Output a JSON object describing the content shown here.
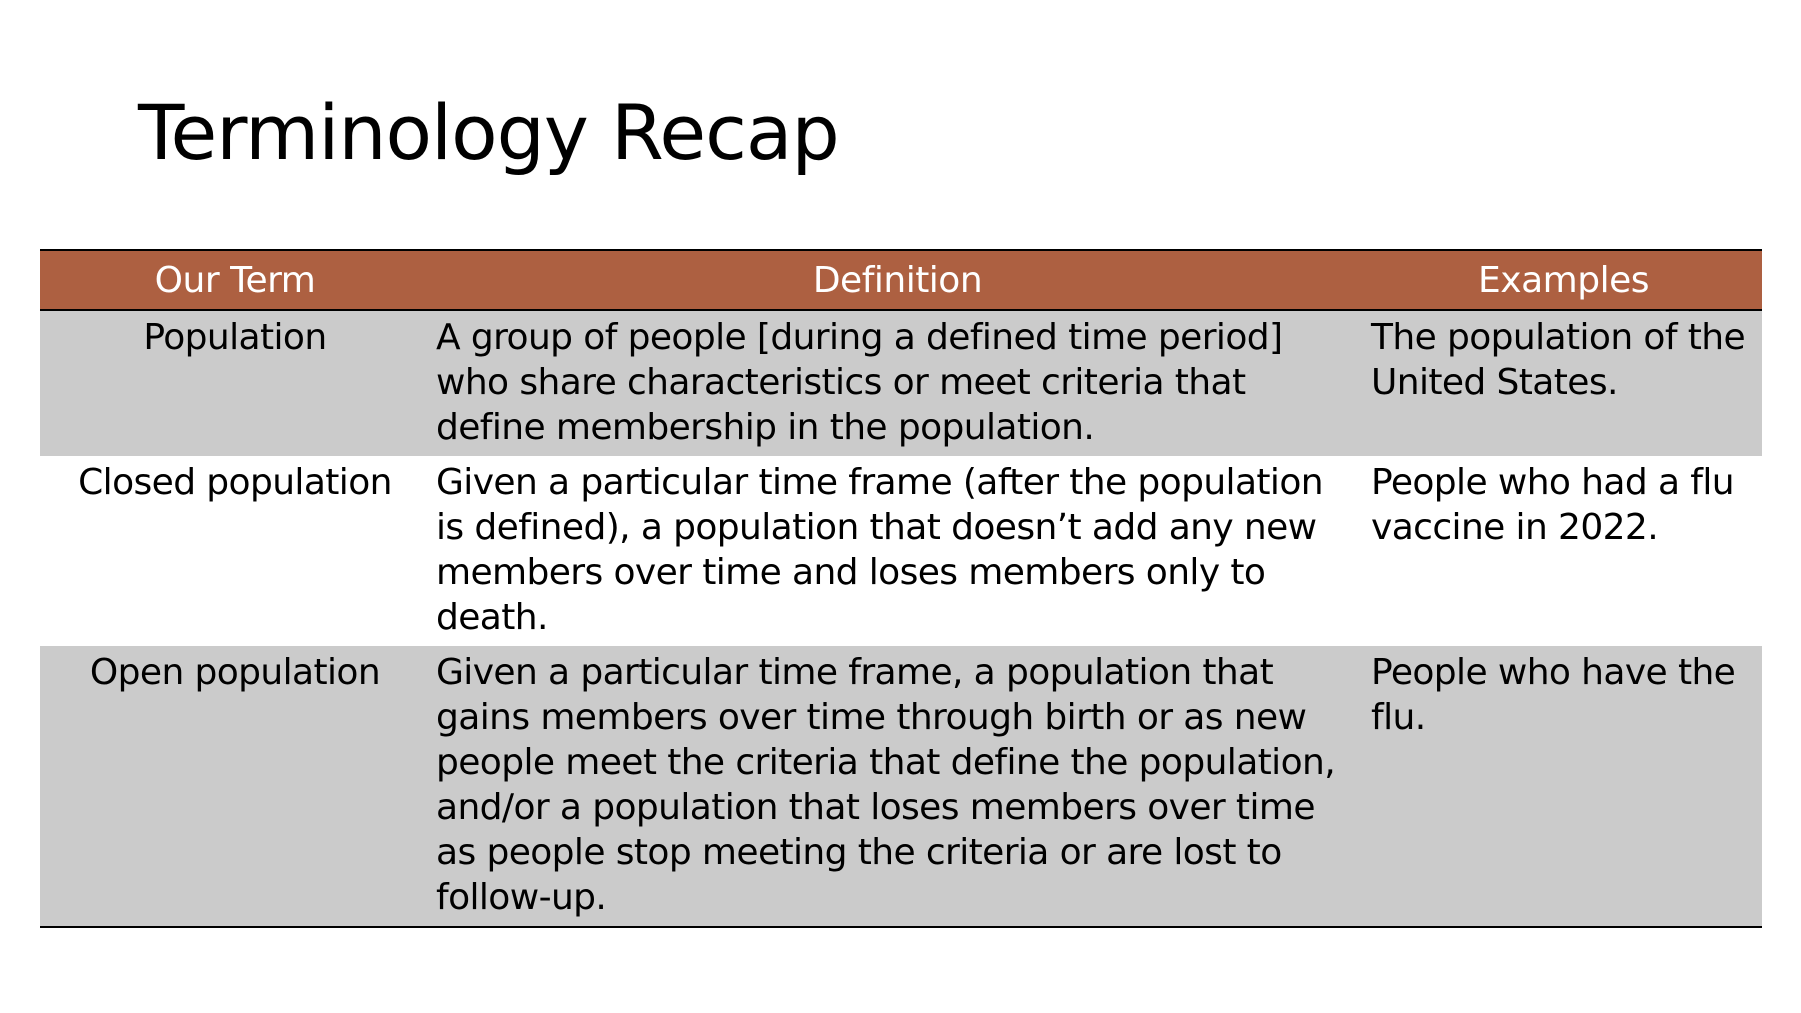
{
  "title": "Terminology Recap",
  "table": {
    "headers": [
      "Our Term",
      "Definition",
      "Examples"
    ],
    "rows": [
      {
        "term": "Population",
        "definition": "A group of people [during a defined time period] who share characteristics or meet criteria that define membership in the population.",
        "example": "The population of the United States."
      },
      {
        "term": "Closed population",
        "definition": "Given a particular time frame (after the population is defined), a population that doesn’t add any new members over time and loses members only to death.",
        "example": "People who had a flu vaccine in 2022."
      },
      {
        "term": "Open population",
        "definition": "Given a particular time frame, a population that gains members over time through birth or as new people meet the criteria that define the population, and/or a population that loses members over time as people stop meeting the criteria or are lost to follow-up.",
        "example": "People who have the flu."
      }
    ]
  },
  "colors": {
    "header_background": "#ad6041",
    "header_text": "#ffffff",
    "shaded_row": "#cbcbcb"
  }
}
